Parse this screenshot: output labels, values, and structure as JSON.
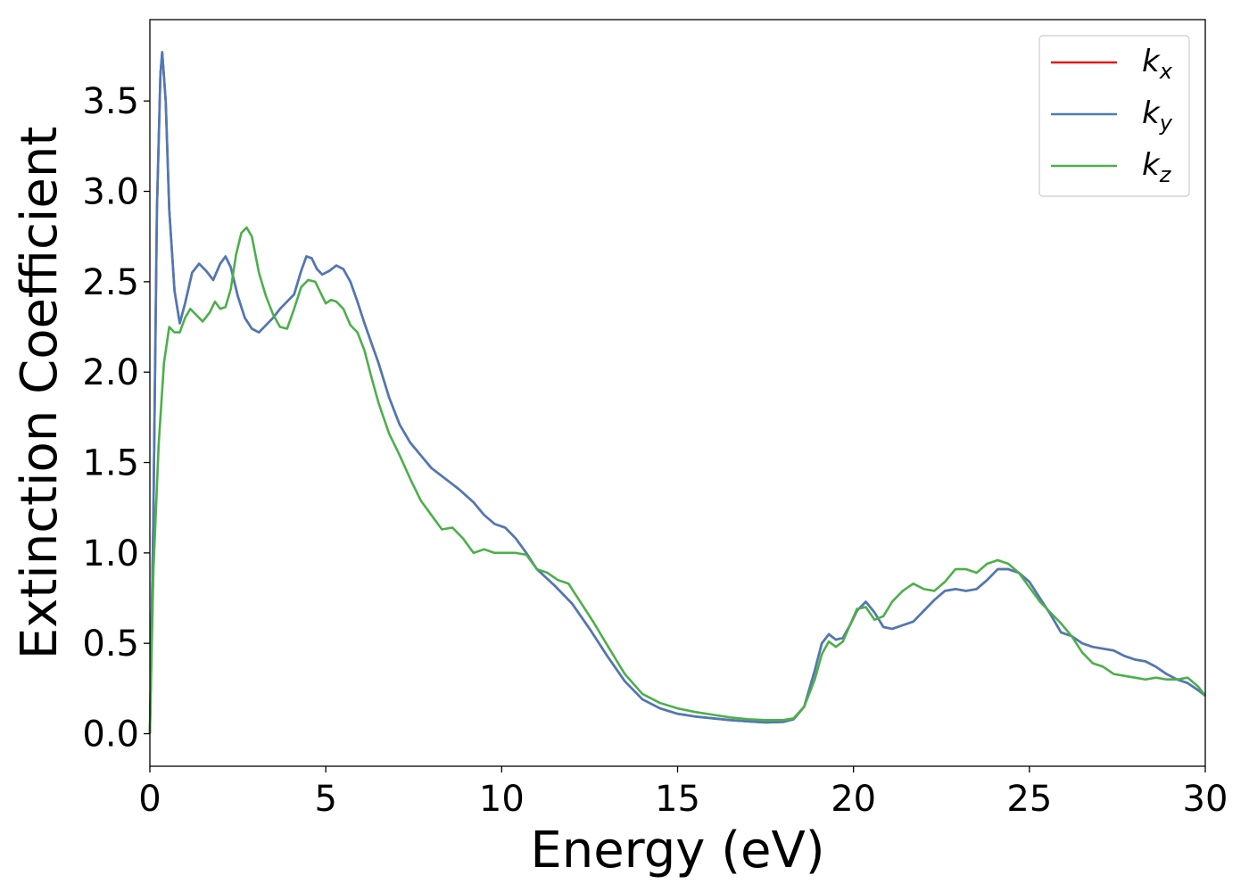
{
  "chart_data": {
    "type": "line",
    "title": "",
    "xlabel": "Energy (eV)",
    "ylabel": "Extinction Coefficient",
    "xlim": [
      0,
      30
    ],
    "ylim": [
      -0.18,
      3.95
    ],
    "xticks": [
      0,
      5,
      10,
      15,
      20,
      25,
      30
    ],
    "xtick_labels": [
      "0",
      "5",
      "10",
      "15",
      "20",
      "25",
      "30"
    ],
    "yticks": [
      0.0,
      0.5,
      1.0,
      1.5,
      2.0,
      2.5,
      3.0,
      3.5
    ],
    "ytick_labels": [
      "0.0",
      "0.5",
      "1.0",
      "1.5",
      "2.0",
      "2.5",
      "3.0",
      "3.5"
    ],
    "grid": false,
    "legend_position": "top-right",
    "series": [
      {
        "name": "k",
        "subscript": "x",
        "color": "#e41a1c",
        "x": [
          0,
          0.1,
          0.2,
          0.3,
          0.35,
          0.45,
          0.55,
          0.7,
          0.85,
          1.0,
          1.2,
          1.4,
          1.6,
          1.8,
          2.0,
          2.15,
          2.3,
          2.5,
          2.7,
          2.9,
          3.1,
          3.3,
          3.5,
          3.7,
          3.9,
          4.1,
          4.3,
          4.45,
          4.6,
          4.75,
          4.9,
          5.1,
          5.3,
          5.5,
          5.7,
          5.9,
          6.1,
          6.3,
          6.5,
          6.8,
          7.1,
          7.4,
          7.7,
          8.0,
          8.4,
          8.8,
          9.2,
          9.5,
          9.8,
          10.1,
          10.4,
          10.7,
          11.0,
          11.5,
          12.0,
          12.5,
          13.0,
          13.5,
          14.0,
          14.5,
          15.0,
          15.5,
          16.0,
          16.5,
          17.0,
          17.5,
          18.0,
          18.3,
          18.6,
          18.9,
          19.1,
          19.3,
          19.5,
          19.7,
          19.9,
          20.1,
          20.35,
          20.6,
          20.85,
          21.1,
          21.4,
          21.7,
          22.0,
          22.3,
          22.6,
          22.9,
          23.2,
          23.5,
          23.8,
          24.1,
          24.4,
          24.7,
          25.0,
          25.3,
          25.6,
          25.9,
          26.2,
          26.5,
          26.8,
          27.1,
          27.4,
          27.7,
          28.0,
          28.3,
          28.6,
          28.9,
          29.2,
          29.5,
          29.8,
          30.0
        ],
        "y": [
          0.0,
          1.2,
          2.9,
          3.65,
          3.77,
          3.5,
          2.9,
          2.45,
          2.27,
          2.38,
          2.55,
          2.6,
          2.56,
          2.51,
          2.6,
          2.64,
          2.58,
          2.42,
          2.3,
          2.24,
          2.22,
          2.26,
          2.3,
          2.35,
          2.39,
          2.43,
          2.56,
          2.64,
          2.63,
          2.57,
          2.54,
          2.56,
          2.59,
          2.57,
          2.5,
          2.39,
          2.27,
          2.16,
          2.05,
          1.86,
          1.71,
          1.61,
          1.54,
          1.47,
          1.41,
          1.35,
          1.28,
          1.21,
          1.16,
          1.14,
          1.08,
          1.0,
          0.91,
          0.82,
          0.72,
          0.58,
          0.43,
          0.29,
          0.19,
          0.14,
          0.11,
          0.095,
          0.085,
          0.075,
          0.068,
          0.062,
          0.065,
          0.08,
          0.15,
          0.35,
          0.5,
          0.55,
          0.52,
          0.53,
          0.6,
          0.68,
          0.73,
          0.67,
          0.59,
          0.58,
          0.6,
          0.62,
          0.68,
          0.74,
          0.79,
          0.8,
          0.79,
          0.8,
          0.85,
          0.91,
          0.91,
          0.89,
          0.84,
          0.75,
          0.66,
          0.56,
          0.54,
          0.5,
          0.48,
          0.47,
          0.46,
          0.43,
          0.41,
          0.4,
          0.37,
          0.33,
          0.3,
          0.28,
          0.24,
          0.21
        ]
      },
      {
        "name": "k",
        "subscript": "y",
        "color": "#4a7bb7",
        "x": [
          0,
          0.1,
          0.2,
          0.3,
          0.35,
          0.45,
          0.55,
          0.7,
          0.85,
          1.0,
          1.2,
          1.4,
          1.6,
          1.8,
          2.0,
          2.15,
          2.3,
          2.5,
          2.7,
          2.9,
          3.1,
          3.3,
          3.5,
          3.7,
          3.9,
          4.1,
          4.3,
          4.45,
          4.6,
          4.75,
          4.9,
          5.1,
          5.3,
          5.5,
          5.7,
          5.9,
          6.1,
          6.3,
          6.5,
          6.8,
          7.1,
          7.4,
          7.7,
          8.0,
          8.4,
          8.8,
          9.2,
          9.5,
          9.8,
          10.1,
          10.4,
          10.7,
          11.0,
          11.5,
          12.0,
          12.5,
          13.0,
          13.5,
          14.0,
          14.5,
          15.0,
          15.5,
          16.0,
          16.5,
          17.0,
          17.5,
          18.0,
          18.3,
          18.6,
          18.9,
          19.1,
          19.3,
          19.5,
          19.7,
          19.9,
          20.1,
          20.35,
          20.6,
          20.85,
          21.1,
          21.4,
          21.7,
          22.0,
          22.3,
          22.6,
          22.9,
          23.2,
          23.5,
          23.8,
          24.1,
          24.4,
          24.7,
          25.0,
          25.3,
          25.6,
          25.9,
          26.2,
          26.5,
          26.8,
          27.1,
          27.4,
          27.7,
          28.0,
          28.3,
          28.6,
          28.9,
          29.2,
          29.5,
          29.8,
          30.0
        ],
        "y": [
          0.0,
          1.2,
          2.9,
          3.65,
          3.77,
          3.5,
          2.9,
          2.45,
          2.27,
          2.38,
          2.55,
          2.6,
          2.56,
          2.51,
          2.6,
          2.64,
          2.58,
          2.42,
          2.3,
          2.24,
          2.22,
          2.26,
          2.3,
          2.35,
          2.39,
          2.43,
          2.56,
          2.64,
          2.63,
          2.57,
          2.54,
          2.56,
          2.59,
          2.57,
          2.5,
          2.39,
          2.27,
          2.16,
          2.05,
          1.86,
          1.71,
          1.61,
          1.54,
          1.47,
          1.41,
          1.35,
          1.28,
          1.21,
          1.16,
          1.14,
          1.08,
          1.0,
          0.91,
          0.82,
          0.72,
          0.58,
          0.43,
          0.29,
          0.19,
          0.14,
          0.11,
          0.095,
          0.085,
          0.075,
          0.068,
          0.062,
          0.065,
          0.08,
          0.15,
          0.35,
          0.5,
          0.55,
          0.52,
          0.53,
          0.6,
          0.68,
          0.73,
          0.67,
          0.59,
          0.58,
          0.6,
          0.62,
          0.68,
          0.74,
          0.79,
          0.8,
          0.79,
          0.8,
          0.85,
          0.91,
          0.91,
          0.89,
          0.84,
          0.75,
          0.66,
          0.56,
          0.54,
          0.5,
          0.48,
          0.47,
          0.46,
          0.43,
          0.41,
          0.4,
          0.37,
          0.33,
          0.3,
          0.28,
          0.24,
          0.21
        ]
      },
      {
        "name": "k",
        "subscript": "z",
        "color": "#4daf4a",
        "x": [
          0,
          0.1,
          0.25,
          0.4,
          0.55,
          0.7,
          0.85,
          1.0,
          1.15,
          1.3,
          1.5,
          1.7,
          1.85,
          2.0,
          2.15,
          2.3,
          2.45,
          2.6,
          2.75,
          2.9,
          3.1,
          3.3,
          3.5,
          3.7,
          3.9,
          4.1,
          4.3,
          4.5,
          4.7,
          4.85,
          5.0,
          5.15,
          5.3,
          5.5,
          5.7,
          5.9,
          6.1,
          6.3,
          6.5,
          6.8,
          7.1,
          7.4,
          7.7,
          8.0,
          8.3,
          8.6,
          8.9,
          9.2,
          9.5,
          9.8,
          10.1,
          10.4,
          10.7,
          11.0,
          11.3,
          11.6,
          11.9,
          12.2,
          12.6,
          13.0,
          13.5,
          14.0,
          14.5,
          15.0,
          15.5,
          16.0,
          16.5,
          17.0,
          17.5,
          18.0,
          18.3,
          18.6,
          18.9,
          19.1,
          19.3,
          19.5,
          19.7,
          19.9,
          20.1,
          20.35,
          20.6,
          20.85,
          21.1,
          21.4,
          21.7,
          22.0,
          22.3,
          22.6,
          22.9,
          23.2,
          23.5,
          23.8,
          24.1,
          24.4,
          24.7,
          25.0,
          25.3,
          25.6,
          25.9,
          26.2,
          26.5,
          26.8,
          27.1,
          27.4,
          27.7,
          28.0,
          28.3,
          28.6,
          28.9,
          29.2,
          29.5,
          29.8,
          30.0
        ],
        "y": [
          0.0,
          0.9,
          1.6,
          2.05,
          2.25,
          2.22,
          2.22,
          2.3,
          2.35,
          2.32,
          2.28,
          2.33,
          2.39,
          2.35,
          2.36,
          2.46,
          2.65,
          2.77,
          2.8,
          2.75,
          2.55,
          2.42,
          2.32,
          2.25,
          2.24,
          2.35,
          2.47,
          2.51,
          2.5,
          2.44,
          2.38,
          2.4,
          2.39,
          2.35,
          2.26,
          2.22,
          2.12,
          1.97,
          1.83,
          1.66,
          1.54,
          1.41,
          1.29,
          1.21,
          1.13,
          1.14,
          1.08,
          1.0,
          1.02,
          1.0,
          1.0,
          1.0,
          0.99,
          0.91,
          0.89,
          0.85,
          0.83,
          0.74,
          0.62,
          0.49,
          0.33,
          0.22,
          0.17,
          0.14,
          0.12,
          0.105,
          0.09,
          0.08,
          0.075,
          0.075,
          0.085,
          0.15,
          0.3,
          0.44,
          0.51,
          0.48,
          0.51,
          0.6,
          0.69,
          0.7,
          0.63,
          0.65,
          0.73,
          0.79,
          0.83,
          0.8,
          0.79,
          0.84,
          0.91,
          0.91,
          0.89,
          0.94,
          0.96,
          0.94,
          0.89,
          0.81,
          0.73,
          0.67,
          0.61,
          0.54,
          0.45,
          0.39,
          0.37,
          0.33,
          0.32,
          0.31,
          0.3,
          0.31,
          0.3,
          0.3,
          0.31,
          0.26,
          0.21
        ]
      }
    ]
  }
}
